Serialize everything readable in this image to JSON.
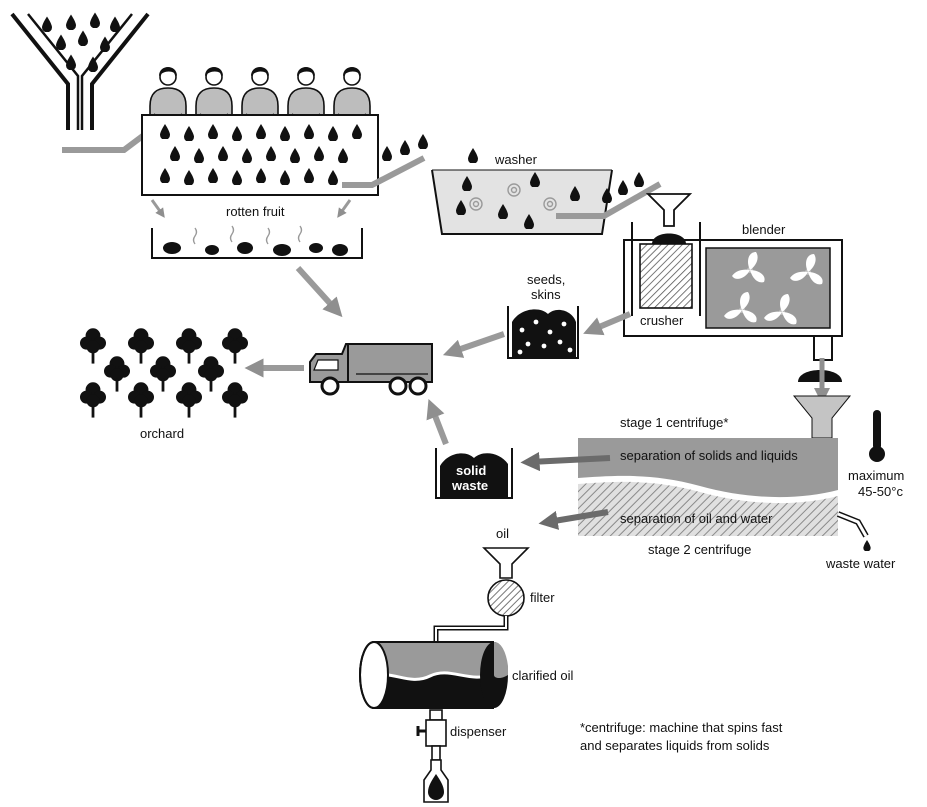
{
  "labels": {
    "rotten_fruit": "rotten fruit",
    "washer": "washer",
    "blender": "blender",
    "crusher": "crusher",
    "seeds_line1": "seeds,",
    "seeds_line2": "skins",
    "orchard": "orchard",
    "stage1": "stage 1 centrifuge*",
    "sep_solids": "separation of solids and liquids",
    "sep_oil": "separation of oil and water",
    "stage2": "stage 2 centrifuge",
    "solid_line1": "solid",
    "solid_line2": "waste",
    "temp_line1": "maximum",
    "temp_line2": "45-50°c",
    "waste_water": "waste water",
    "oil": "oil",
    "filter": "filter",
    "clarified_oil": "clarified oil",
    "dispenser": "dispenser",
    "footnote_line1": "*centrifuge: machine that spins fast",
    "footnote_line2": "and separates liquids from solids"
  },
  "colors": {
    "black": "#111111",
    "dark_gray": "#6b6b6b",
    "mid_gray": "#9a9a9a",
    "light_gray": "#c4c4c4",
    "pale_gray": "#dcdcdc",
    "white": "#ffffff"
  }
}
